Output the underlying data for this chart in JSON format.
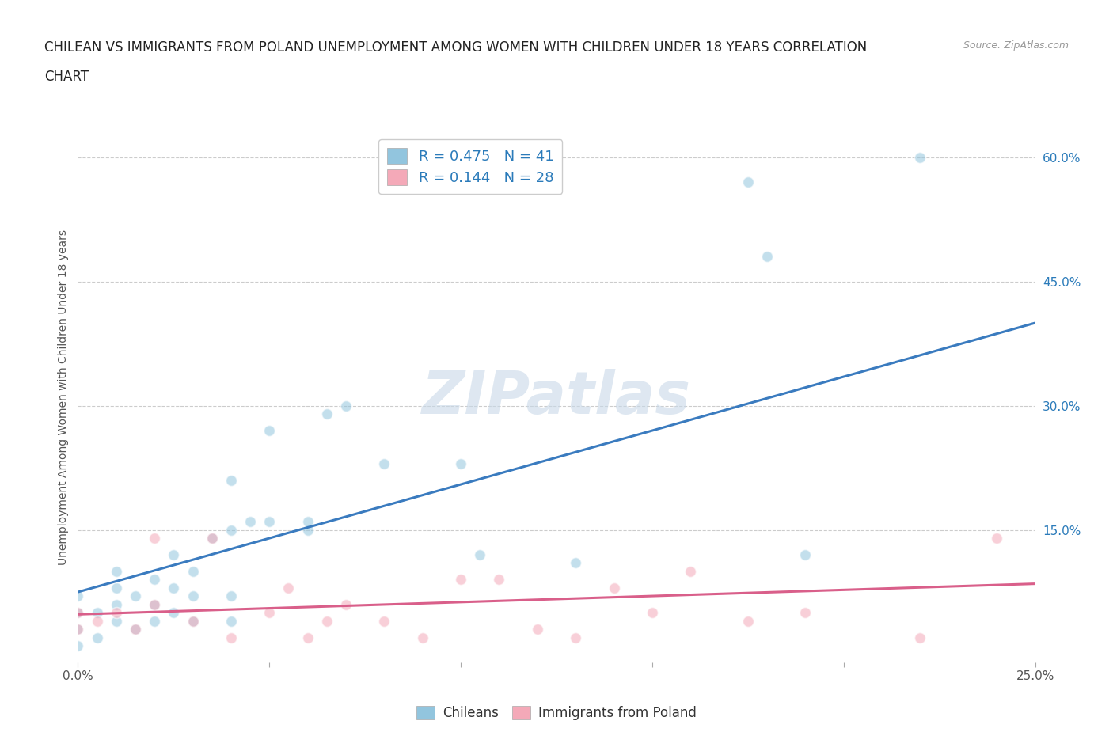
{
  "title_line1": "CHILEAN VS IMMIGRANTS FROM POLAND UNEMPLOYMENT AMONG WOMEN WITH CHILDREN UNDER 18 YEARS CORRELATION",
  "title_line2": "CHART",
  "source": "Source: ZipAtlas.com",
  "ylabel": "Unemployment Among Women with Children Under 18 years",
  "watermark": "ZIPatlas",
  "chilean_R": 0.475,
  "chilean_N": 41,
  "poland_R": 0.144,
  "poland_N": 28,
  "xlim": [
    0.0,
    0.25
  ],
  "ylim": [
    -0.01,
    0.63
  ],
  "xticks": [
    0.0,
    0.05,
    0.1,
    0.15,
    0.2,
    0.25
  ],
  "ytick_vals_right": [
    0.0,
    0.15,
    0.3,
    0.45,
    0.6
  ],
  "ytick_labels_right": [
    "",
    "15.0%",
    "30.0%",
    "45.0%",
    "60.0%"
  ],
  "chilean_color": "#92c5de",
  "poland_color": "#f4a9b8",
  "line_chilean_color": "#3a7bbf",
  "line_poland_color": "#d95f8a",
  "chilean_scatter_x": [
    0.0,
    0.0,
    0.0,
    0.0,
    0.005,
    0.005,
    0.01,
    0.01,
    0.01,
    0.01,
    0.015,
    0.015,
    0.02,
    0.02,
    0.02,
    0.025,
    0.025,
    0.025,
    0.03,
    0.03,
    0.03,
    0.035,
    0.04,
    0.04,
    0.04,
    0.04,
    0.045,
    0.05,
    0.05,
    0.06,
    0.06,
    0.065,
    0.07,
    0.08,
    0.1,
    0.105,
    0.13,
    0.175,
    0.18,
    0.19,
    0.22
  ],
  "chilean_scatter_y": [
    0.01,
    0.03,
    0.05,
    0.07,
    0.02,
    0.05,
    0.04,
    0.06,
    0.08,
    0.1,
    0.03,
    0.07,
    0.04,
    0.06,
    0.09,
    0.05,
    0.08,
    0.12,
    0.04,
    0.07,
    0.1,
    0.14,
    0.04,
    0.07,
    0.15,
    0.21,
    0.16,
    0.16,
    0.27,
    0.15,
    0.16,
    0.29,
    0.3,
    0.23,
    0.23,
    0.12,
    0.11,
    0.57,
    0.48,
    0.12,
    0.6
  ],
  "poland_scatter_x": [
    0.0,
    0.0,
    0.005,
    0.01,
    0.015,
    0.02,
    0.02,
    0.03,
    0.035,
    0.04,
    0.05,
    0.055,
    0.06,
    0.065,
    0.07,
    0.08,
    0.09,
    0.1,
    0.11,
    0.12,
    0.13,
    0.14,
    0.15,
    0.16,
    0.175,
    0.19,
    0.22,
    0.24
  ],
  "poland_scatter_y": [
    0.03,
    0.05,
    0.04,
    0.05,
    0.03,
    0.06,
    0.14,
    0.04,
    0.14,
    0.02,
    0.05,
    0.08,
    0.02,
    0.04,
    0.06,
    0.04,
    0.02,
    0.09,
    0.09,
    0.03,
    0.02,
    0.08,
    0.05,
    0.1,
    0.04,
    0.05,
    0.02,
    0.14
  ],
  "chilean_line_x": [
    0.0,
    0.25
  ],
  "chilean_line_y": [
    0.075,
    0.4
  ],
  "poland_line_x": [
    0.0,
    0.25
  ],
  "poland_line_y": [
    0.048,
    0.085
  ],
  "background_color": "#ffffff",
  "grid_color": "#cccccc",
  "title_color": "#222222",
  "axis_label_color": "#555555",
  "right_axis_color": "#2b7bba",
  "watermark_color": "#c8d8e8",
  "scatter_size": 100,
  "scatter_alpha": 0.55,
  "scatter_edge_alpha": 0.7,
  "legend_fontsize": 13,
  "title_fontsize": 12,
  "tick_label_fontsize": 11
}
